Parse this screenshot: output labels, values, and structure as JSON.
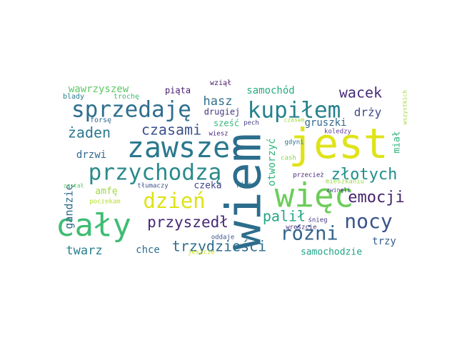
{
  "word_cloud": {
    "words": [
      {
        "text": "wiem",
        "color": "#2c6d8c"
      },
      {
        "text": "jest",
        "color": "#dfe319"
      },
      {
        "text": "zawsze",
        "color": "#2b788e"
      },
      {
        "text": "cały",
        "color": "#3fbc73"
      },
      {
        "text": "więc",
        "color": "#6ccd5a"
      },
      {
        "text": "przychodzą",
        "color": "#2b8a8c"
      },
      {
        "text": "kupiłem",
        "color": "#26818e"
      },
      {
        "text": "sprzedaję",
        "color": "#2e6e8e"
      },
      {
        "text": "dzień",
        "color": "#dde318"
      },
      {
        "text": "nocy",
        "color": "#3a538b"
      },
      {
        "text": "różni",
        "color": "#32648e"
      },
      {
        "text": "złotych",
        "color": "#218f8d"
      },
      {
        "text": "emocji",
        "color": "#46246e"
      },
      {
        "text": "przyszedł",
        "color": "#482878"
      },
      {
        "text": "palił",
        "color": "#22a785"
      },
      {
        "text": "trzydzieści",
        "color": "#2e6e8e"
      },
      {
        "text": "czasami",
        "color": "#3b518b"
      },
      {
        "text": "żaden",
        "color": "#2b798e"
      },
      {
        "text": "wacek",
        "color": "#472c7a"
      },
      {
        "text": "twarz",
        "color": "#277f8e"
      },
      {
        "text": "hasz",
        "color": "#2e6f8e"
      },
      {
        "text": "gandzię",
        "color": "#2f6b8e"
      },
      {
        "text": "drży",
        "color": "#3e4989"
      },
      {
        "text": "otworzyć",
        "color": "#2fb47c"
      },
      {
        "text": "samochód",
        "color": "#26ad81"
      },
      {
        "text": "samochodzie",
        "color": "#1fa287"
      },
      {
        "text": "gruszki",
        "color": "#30698e"
      },
      {
        "text": "wawrzyszew",
        "color": "#5cc863"
      },
      {
        "text": "trzy",
        "color": "#365c8d"
      },
      {
        "text": "drzwi",
        "color": "#31678e"
      },
      {
        "text": "chce",
        "color": "#2d718e"
      },
      {
        "text": "czeka",
        "color": "#404387"
      },
      {
        "text": "amfę",
        "color": "#9fda3a"
      },
      {
        "text": "miał",
        "color": "#2db27d"
      },
      {
        "text": "piąta",
        "color": "#481a6c"
      },
      {
        "text": "drugiej",
        "color": "#453882"
      },
      {
        "text": "sześć",
        "color": "#35b779"
      },
      {
        "text": "wziął",
        "color": "#48186a"
      },
      {
        "text": "blady",
        "color": "#287c8e"
      },
      {
        "text": "trochę",
        "color": "#3fbc73"
      },
      {
        "text": "forsę",
        "color": "#31688e"
      },
      {
        "text": "wiesz",
        "color": "#482475"
      },
      {
        "text": "pech",
        "color": "#424186"
      },
      {
        "text": "czasem",
        "color": "#9bd93c"
      },
      {
        "text": "koledzy",
        "color": "#5e3c99"
      },
      {
        "text": "wszystkich",
        "color": "#a2da37"
      },
      {
        "text": "gdyni",
        "color": "#2c728e"
      },
      {
        "text": "cash",
        "color": "#86d549"
      },
      {
        "text": "przecież",
        "color": "#482173"
      },
      {
        "text": "mieszkaniu",
        "color": "#97d83f"
      },
      {
        "text": "zwinęli",
        "color": "#453581"
      },
      {
        "text": "śnieg",
        "color": "#453882"
      },
      {
        "text": "wreszcie",
        "color": "#46307e"
      },
      {
        "text": "został",
        "color": "#5ac864"
      },
      {
        "text": "tłumaczy",
        "color": "#3b528b"
      },
      {
        "text": "pies",
        "color": "#2a768e"
      },
      {
        "text": "oddaje",
        "color": "#3a548c"
      },
      {
        "text": "poczekam",
        "color": "#b5de2b"
      },
      {
        "text": "jeszcze",
        "color": "#c8e020"
      }
    ]
  }
}
